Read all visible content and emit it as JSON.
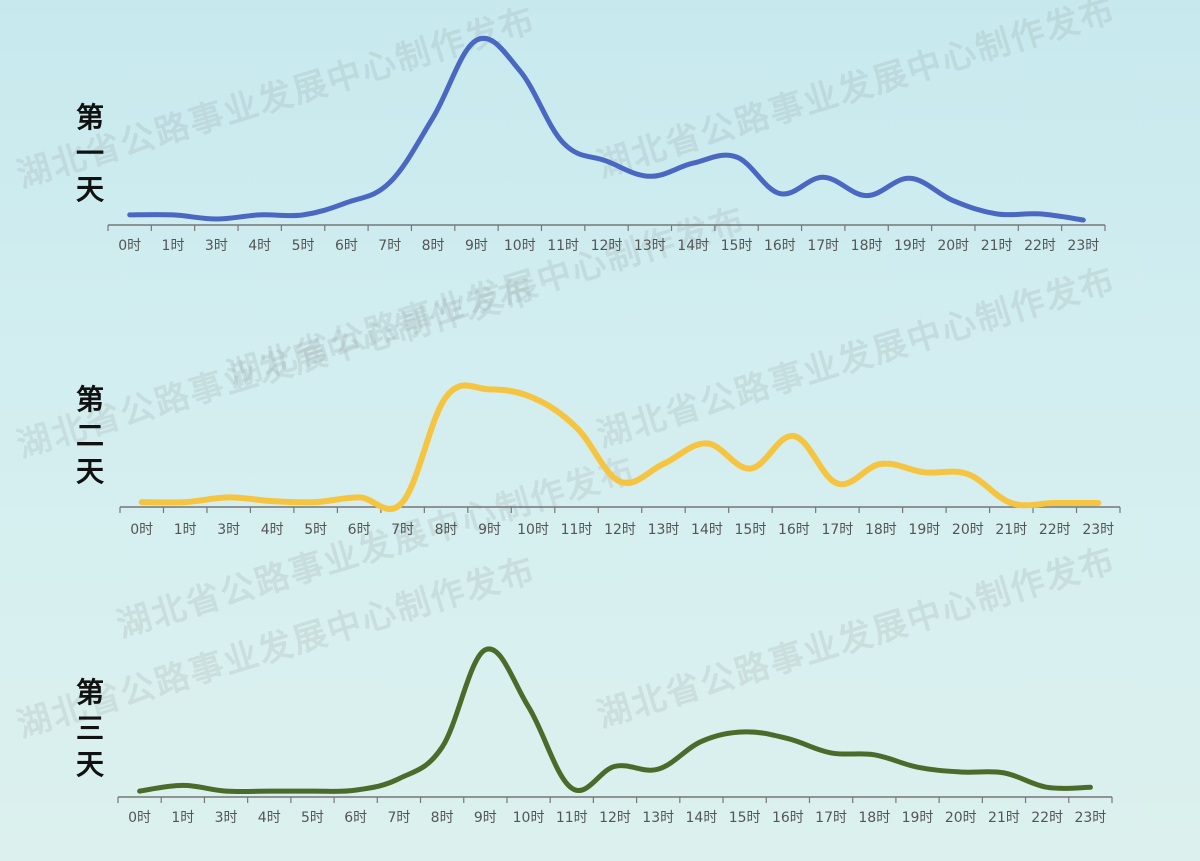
{
  "watermark_text": "湖北省公路事业发展中心制作发布",
  "chart_data": [
    {
      "type": "line",
      "day_label": [
        "第",
        "一",
        "天"
      ],
      "color": "#4a67c2",
      "categories": [
        "0时",
        "1时",
        "3时",
        "4时",
        "5时",
        "6时",
        "7时",
        "8时",
        "9时",
        "10时",
        "11时",
        "12时",
        "13时",
        "14时",
        "15时",
        "16时",
        "17时",
        "18时",
        "19时",
        "20时",
        "21时",
        "22时",
        "23时"
      ],
      "values": [
        6,
        6,
        2,
        6,
        6,
        18,
        38,
        102,
        178,
        148,
        77,
        59,
        44,
        57,
        63,
        27,
        43,
        25,
        42,
        20,
        7,
        7,
        1
      ],
      "ylim": [
        0,
        190
      ],
      "xlabel": "",
      "ylabel": "",
      "title": ""
    },
    {
      "type": "line",
      "day_label": [
        "第",
        "二",
        "天"
      ],
      "color": "#f5c542",
      "categories": [
        "0时",
        "1时",
        "3时",
        "4时",
        "5时",
        "6时",
        "7时",
        "8时",
        "9时",
        "10时",
        "11时",
        "12时",
        "13时",
        "14时",
        "15时",
        "16时",
        "17时",
        "18时",
        "19时",
        "20时",
        "21时",
        "22时",
        "23时"
      ],
      "values": [
        1,
        1,
        6,
        2,
        1,
        6,
        1,
        114,
        122,
        113,
        81,
        23,
        42,
        64,
        37,
        72,
        21,
        42,
        33,
        31,
        0,
        0,
        0
      ],
      "ylim": [
        0,
        130
      ],
      "xlabel": "",
      "ylabel": "",
      "title": ""
    },
    {
      "type": "line",
      "day_label": [
        "第",
        "三",
        "天"
      ],
      "color": "#4b6b2a",
      "categories": [
        "0时",
        "1时",
        "3时",
        "4时",
        "5时",
        "6时",
        "7时",
        "8时",
        "9时",
        "10时",
        "11时",
        "12时",
        "13时",
        "14时",
        "15时",
        "16时",
        "17时",
        "18时",
        "19时",
        "20时",
        "21时",
        "22时",
        "23时"
      ],
      "values": [
        2,
        8,
        2,
        2,
        2,
        3,
        15,
        48,
        150,
        90,
        5,
        28,
        25,
        54,
        64,
        57,
        42,
        40,
        27,
        22,
        21,
        6,
        6
      ],
      "ylim": [
        0,
        155
      ],
      "xlabel": "",
      "ylabel": "",
      "title": ""
    }
  ]
}
